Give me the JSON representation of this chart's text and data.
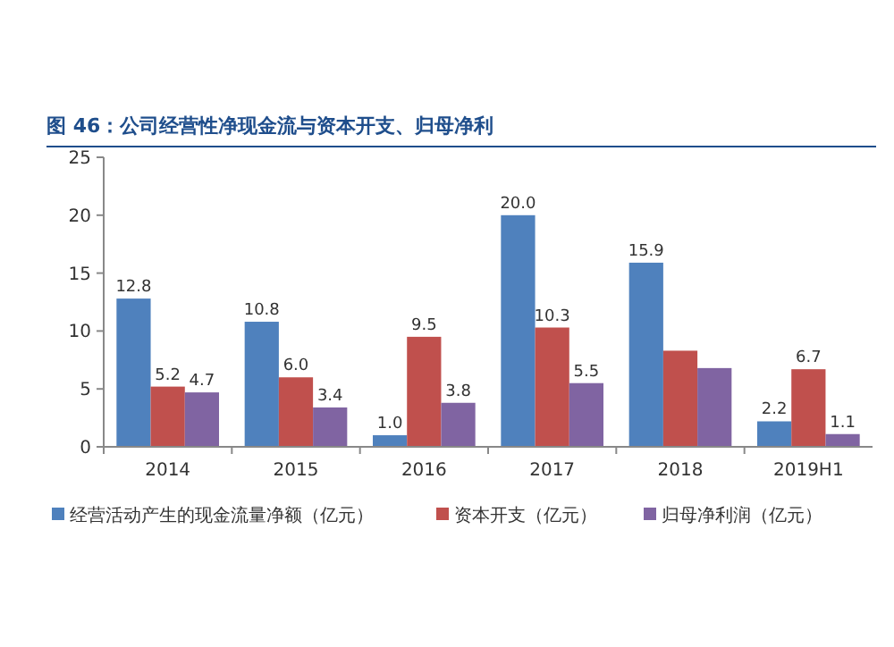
{
  "chart_data": {
    "type": "bar",
    "title": "图 46：公司经营性净现金流与资本开支、归母净利",
    "categories": [
      "2014",
      "2015",
      "2016",
      "2017",
      "2018",
      "2019H1"
    ],
    "series": [
      {
        "name": "经营活动产生的现金流量净额（亿元）",
        "color": "#4f81bd",
        "values": [
          12.8,
          10.8,
          1.0,
          20.0,
          15.9,
          2.2
        ],
        "value_labels": [
          "12.8",
          "10.8",
          "1.0",
          "20.0",
          "15.9",
          "2.2"
        ]
      },
      {
        "name": "资本开支（亿元）",
        "color": "#c0504d",
        "values": [
          5.2,
          6.0,
          9.5,
          10.3,
          8.3,
          6.7
        ],
        "value_labels": [
          "5.2",
          "6.0",
          "9.5",
          "10.3",
          null,
          "6.7"
        ]
      },
      {
        "name": "归母净利润（亿元）",
        "color": "#8064a2",
        "values": [
          4.7,
          3.4,
          3.8,
          5.5,
          6.8,
          1.1
        ],
        "value_labels": [
          "4.7",
          "3.4",
          "3.8",
          "5.5",
          null,
          "1.1"
        ]
      }
    ],
    "ylim": [
      0,
      25
    ],
    "yticks": [
      0,
      5,
      10,
      15,
      20,
      25
    ],
    "grid": false,
    "legend": "bottom"
  }
}
